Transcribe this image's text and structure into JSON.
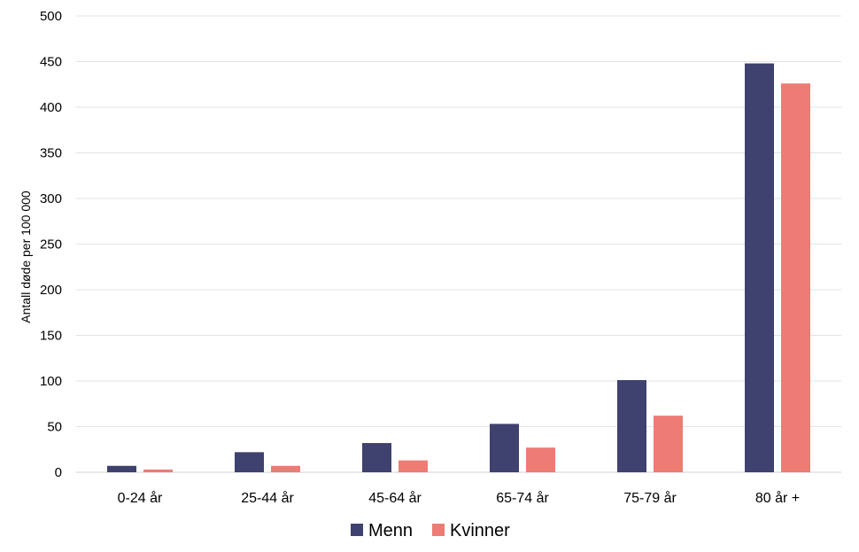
{
  "chart_data": {
    "type": "bar",
    "categories": [
      "0-24 år",
      "25-44 år",
      "45-64 år",
      "65-74 år",
      "75-79 år",
      "80 år +"
    ],
    "series": [
      {
        "name": "Menn",
        "values": [
          7,
          22,
          32,
          53,
          101,
          448
        ],
        "color": "#3f416e"
      },
      {
        "name": "Kvinner",
        "values": [
          3,
          7,
          13,
          27,
          62,
          426
        ],
        "color": "#ec7c74"
      }
    ],
    "title": "",
    "xlabel": "",
    "ylabel": "Antall døde per 100 000",
    "ylim": [
      0,
      500
    ],
    "yticks": [
      0,
      50,
      100,
      150,
      200,
      250,
      300,
      350,
      400,
      450,
      500
    ],
    "grid": true,
    "legend_position": "bottom"
  }
}
